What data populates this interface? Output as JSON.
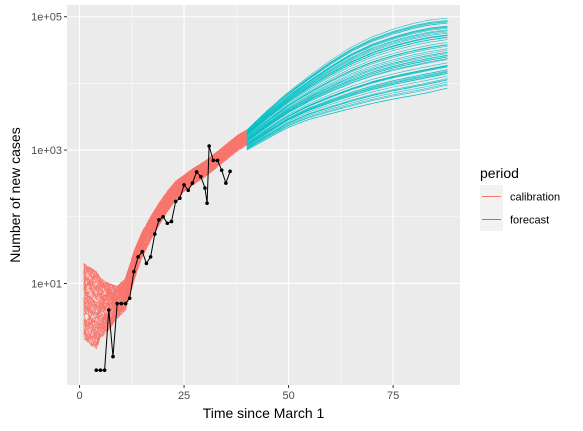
{
  "chart_data": {
    "type": "line",
    "title": "",
    "xlabel": "Time since March 1",
    "ylabel": "Number of new cases",
    "x_scale": "linear",
    "y_scale": "log10",
    "xlim": [
      -3,
      91
    ],
    "ylim": [
      0.3,
      150000
    ],
    "x_ticks": [
      0,
      25,
      50,
      75
    ],
    "x_tick_labels": [
      "0",
      "25",
      "50",
      "75"
    ],
    "y_ticks": [
      10,
      1000,
      100000
    ],
    "y_tick_labels": [
      "1e+01",
      "1e+03",
      "1e+05"
    ],
    "grid": true,
    "legend": {
      "title": "period",
      "position": "right",
      "entries": [
        {
          "label": "calibration",
          "color": "#F8766D"
        },
        {
          "label": "forecast",
          "color": "#00BFC4"
        }
      ]
    },
    "series": [
      {
        "name": "calibration",
        "kind": "ensemble_band",
        "color": "#F8766D",
        "x_range": [
          1,
          40
        ],
        "median": [
          [
            1,
            3
          ],
          [
            4,
            8
          ],
          [
            5,
            6
          ],
          [
            7,
            5
          ],
          [
            9,
            6
          ],
          [
            11,
            8
          ],
          [
            13,
            20
          ],
          [
            15,
            40
          ],
          [
            17,
            70
          ],
          [
            19,
            110
          ],
          [
            21,
            170
          ],
          [
            23,
            240
          ],
          [
            25,
            310
          ],
          [
            27,
            380
          ],
          [
            30,
            500
          ],
          [
            33,
            700
          ],
          [
            36,
            1000
          ],
          [
            38,
            1300
          ],
          [
            40,
            1500
          ]
        ],
        "lower": [
          [
            1,
            1.5
          ],
          [
            4,
            1
          ],
          [
            5,
            1.5
          ],
          [
            7,
            2
          ],
          [
            9,
            3
          ],
          [
            11,
            4
          ],
          [
            13,
            11
          ],
          [
            15,
            25
          ],
          [
            17,
            45
          ],
          [
            19,
            75
          ],
          [
            21,
            120
          ],
          [
            23,
            180
          ],
          [
            25,
            240
          ],
          [
            27,
            300
          ],
          [
            30,
            400
          ],
          [
            33,
            560
          ],
          [
            36,
            800
          ],
          [
            38,
            1000
          ],
          [
            40,
            1200
          ]
        ],
        "upper": [
          [
            1,
            20
          ],
          [
            4,
            15
          ],
          [
            5,
            12
          ],
          [
            7,
            10
          ],
          [
            9,
            9
          ],
          [
            11,
            12
          ],
          [
            13,
            30
          ],
          [
            15,
            60
          ],
          [
            17,
            100
          ],
          [
            19,
            160
          ],
          [
            21,
            240
          ],
          [
            23,
            340
          ],
          [
            25,
            420
          ],
          [
            27,
            520
          ],
          [
            30,
            680
          ],
          [
            33,
            950
          ],
          [
            36,
            1350
          ],
          [
            38,
            1700
          ],
          [
            40,
            2000
          ]
        ]
      },
      {
        "name": "forecast",
        "kind": "ensemble_band",
        "color": "#00BFC4",
        "x_range": [
          40,
          88
        ],
        "median": [
          [
            40,
            1500
          ],
          [
            45,
            2800
          ],
          [
            50,
            5000
          ],
          [
            55,
            8500
          ],
          [
            60,
            13000
          ],
          [
            65,
            18000
          ],
          [
            70,
            23000
          ],
          [
            75,
            28000
          ],
          [
            80,
            33000
          ],
          [
            84,
            37000
          ],
          [
            88,
            40000
          ]
        ],
        "lower": [
          [
            40,
            1000
          ],
          [
            45,
            1500
          ],
          [
            50,
            2200
          ],
          [
            55,
            2900
          ],
          [
            60,
            3500
          ],
          [
            65,
            4200
          ],
          [
            70,
            5000
          ],
          [
            75,
            5800
          ],
          [
            80,
            6600
          ],
          [
            84,
            7400
          ],
          [
            88,
            8500
          ]
        ],
        "upper": [
          [
            40,
            2000
          ],
          [
            45,
            4000
          ],
          [
            50,
            7500
          ],
          [
            55,
            13000
          ],
          [
            60,
            22000
          ],
          [
            65,
            35000
          ],
          [
            70,
            50000
          ],
          [
            75,
            65000
          ],
          [
            80,
            80000
          ],
          [
            84,
            90000
          ],
          [
            88,
            95000
          ]
        ]
      },
      {
        "name": "",
        "kind": "observed",
        "color": "#000000",
        "points": [
          [
            4,
            0.5
          ],
          [
            5,
            0.5
          ],
          [
            6,
            0.5
          ],
          [
            7,
            4
          ],
          [
            8,
            0.8
          ],
          [
            9,
            5
          ],
          [
            10,
            5
          ],
          [
            11,
            5
          ],
          [
            12,
            6
          ],
          [
            13,
            15
          ],
          [
            14,
            25
          ],
          [
            15,
            30
          ],
          [
            16,
            20
          ],
          [
            17,
            25
          ],
          [
            18,
            55
          ],
          [
            19,
            90
          ],
          [
            20,
            100
          ],
          [
            21,
            80
          ],
          [
            22,
            85
          ],
          [
            23,
            170
          ],
          [
            24,
            190
          ],
          [
            25,
            300
          ],
          [
            26,
            250
          ],
          [
            27,
            320
          ],
          [
            28,
            470
          ],
          [
            29,
            400
          ],
          [
            30,
            270
          ],
          [
            30.5,
            160
          ],
          [
            31,
            1150
          ],
          [
            32,
            700
          ],
          [
            33,
            700
          ],
          [
            34,
            500
          ],
          [
            35,
            320
          ],
          [
            36,
            480
          ]
        ]
      }
    ]
  }
}
